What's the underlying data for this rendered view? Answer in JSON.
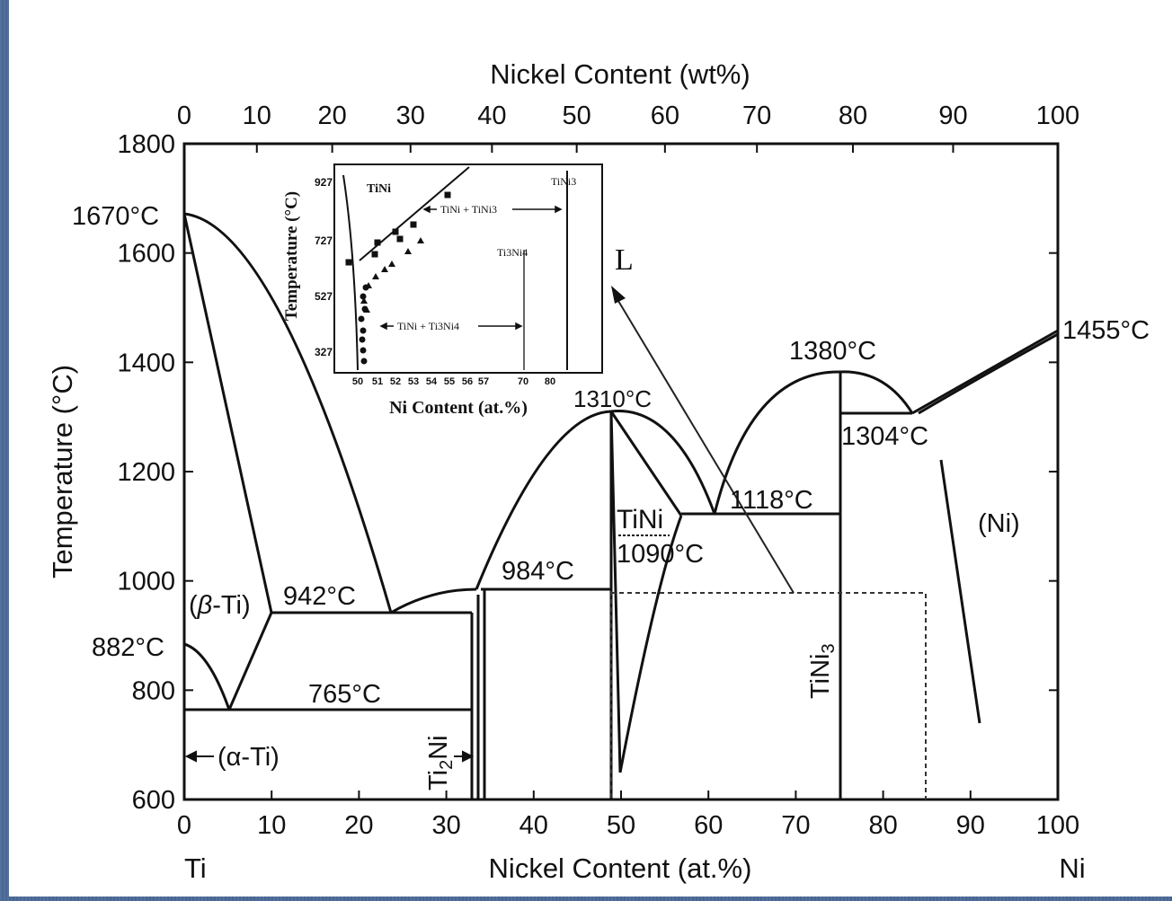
{
  "chart_data": {
    "type": "line",
    "title": "",
    "top_axis": {
      "label": "Nickel Content (wt%)",
      "ticks": [
        0,
        10,
        20,
        30,
        40,
        50,
        60,
        70,
        80,
        90,
        100
      ]
    },
    "x_axis": {
      "label": "Nickel Content (at.%)",
      "ticks": [
        0,
        10,
        20,
        30,
        40,
        50,
        60,
        70,
        80,
        90,
        100
      ],
      "xlim": [
        0,
        100
      ],
      "end_labels": [
        "Ti",
        "Ni"
      ]
    },
    "y_axis": {
      "label": "Temperature (°C)",
      "ticks": [
        600,
        800,
        1000,
        1200,
        1400,
        1600,
        1800
      ],
      "ylim": [
        600,
        1800
      ]
    },
    "annotations": [
      {
        "text": "1670°C",
        "x": 0,
        "y": 1670
      },
      {
        "text": "882°C",
        "x": 0,
        "y": 882
      },
      {
        "text": "1455°C",
        "x": 100,
        "y": 1455
      },
      {
        "text": "942°C",
        "x": 17,
        "y": 942
      },
      {
        "text": "765°C",
        "x": 19,
        "y": 765
      },
      {
        "text": "984°C",
        "x": 41,
        "y": 984
      },
      {
        "text": "1310°C",
        "x": 50,
        "y": 1310
      },
      {
        "text": "1380°C",
        "x": 75,
        "y": 1380
      },
      {
        "text": "1304°C",
        "x": 84,
        "y": 1304
      },
      {
        "text": "1118°C",
        "x": 61,
        "y": 1118
      },
      {
        "text": "1090°C",
        "x": 57,
        "y": 1090
      }
    ],
    "phase_labels": [
      "(β-Ti)",
      "(α-Ti)",
      "Ti2Ni",
      "TiNi",
      "TiNi3",
      "(Ni)",
      "L"
    ],
    "series": [
      {
        "name": "liquidus",
        "x": [
          0,
          10,
          24,
          33,
          49.5,
          61,
          75,
          84,
          100
        ],
        "y": [
          1670,
          1400,
          942,
          984,
          1310,
          1118,
          1380,
          1304,
          1455
        ]
      },
      {
        "name": "beta-Ti solidus",
        "x": [
          0,
          10
        ],
        "y": [
          1670,
          942
        ]
      },
      {
        "name": "beta-Ti solvus",
        "x": [
          0,
          5,
          10
        ],
        "y": [
          882,
          765,
          942
        ]
      },
      {
        "name": "TiNi phase boundary left",
        "x": [
          49.5,
          50,
          50
        ],
        "y": [
          1310,
          1090,
          630
        ]
      },
      {
        "name": "TiNi phase boundary right",
        "x": [
          49.5,
          57,
          50.5
        ],
        "y": [
          1310,
          1118,
          630
        ]
      },
      {
        "name": "Ni solvus",
        "x": [
          86,
          91
        ],
        "y": [
          1260,
          740
        ]
      }
    ],
    "inset": {
      "x_label": "Ni Content (at.%)",
      "y_label": "Temperature (°C)",
      "x_ticks": [
        "50",
        "51",
        "52",
        "53",
        "54",
        "55",
        "56",
        "57",
        "70",
        "80"
      ],
      "y_ticks": [
        "927",
        "727",
        "527",
        "327"
      ],
      "labels": {
        "tini": "TiNi",
        "tini3": "TiNi3",
        "ti3ni4": "Ti3Ni4",
        "tini_tini3": "TiNi + TiNi3",
        "tini_ti3ni4": "TiNi + Ti3Ni4"
      }
    }
  },
  "colors": {
    "background": "#4a6a98",
    "plot": "#ffffff",
    "ink": "#111111"
  }
}
